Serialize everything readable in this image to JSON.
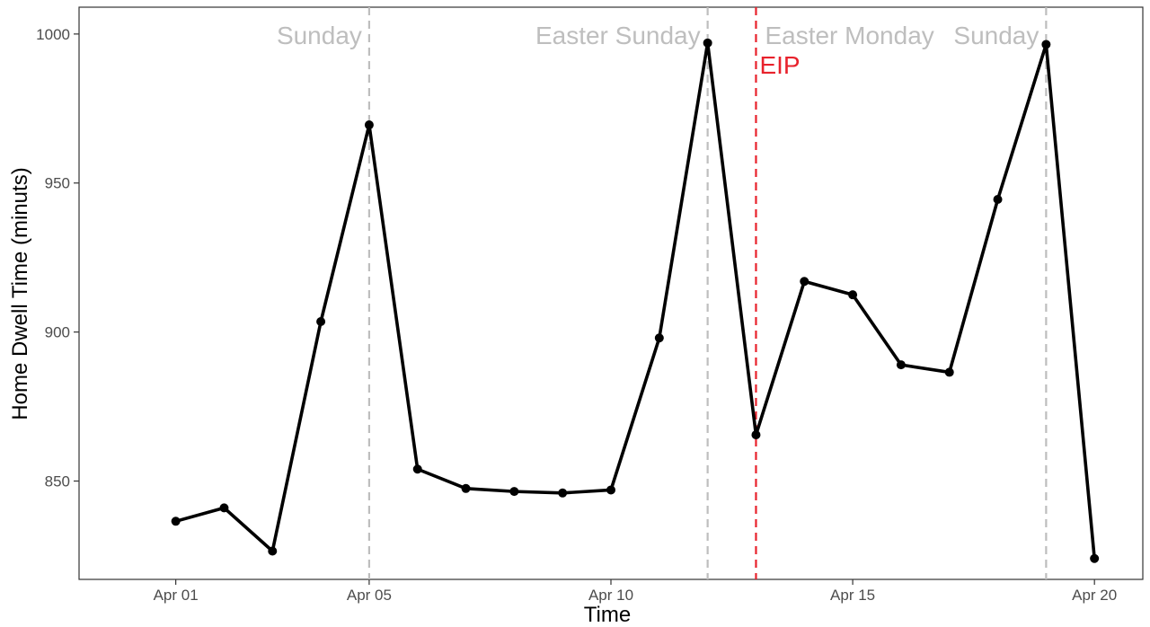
{
  "chart_data": {
    "type": "line",
    "xlabel": "Time",
    "ylabel": "Home Dwell Time (minuts)",
    "x": [
      "2020-04-01",
      "2020-04-02",
      "2020-04-03",
      "2020-04-04",
      "2020-04-05",
      "2020-04-06",
      "2020-04-07",
      "2020-04-08",
      "2020-04-09",
      "2020-04-10",
      "2020-04-11",
      "2020-04-12",
      "2020-04-13",
      "2020-04-14",
      "2020-04-15",
      "2020-04-16",
      "2020-04-17",
      "2020-04-18",
      "2020-04-19",
      "2020-04-20"
    ],
    "series": [
      {
        "values": [
          836.5,
          841,
          826.5,
          903.5,
          969.5,
          854,
          847.5,
          846.5,
          846,
          847,
          898,
          997,
          865.5,
          917,
          912.5,
          889,
          886.5,
          944.5,
          996.5,
          824
        ]
      }
    ],
    "xlim": [
      "2020-03-30",
      "2020-04-21"
    ],
    "ylim": [
      817,
      1009
    ],
    "y_ticks": [
      850,
      900,
      950,
      1000
    ],
    "x_ticks": [
      {
        "date": "2020-04-01",
        "label": "Apr 01"
      },
      {
        "date": "2020-04-05",
        "label": "Apr 05"
      },
      {
        "date": "2020-04-10",
        "label": "Apr 10"
      },
      {
        "date": "2020-04-15",
        "label": "Apr 15"
      },
      {
        "date": "2020-04-20",
        "label": "Apr 20"
      }
    ],
    "vertical_lines": [
      {
        "date": "2020-04-05",
        "color": "#bebebe",
        "label": "Sunday",
        "label_side": "left"
      },
      {
        "date": "2020-04-12",
        "color": "#bebebe",
        "label": "Easter Sunday",
        "label_side": "left"
      },
      {
        "date": "2020-04-13",
        "color": "#e8222c",
        "label": "Easter Monday",
        "label_side": "right",
        "label_color": "#bebebe",
        "sub_label": "EIP",
        "sub_label_color": "#e8222c"
      },
      {
        "date": "2020-04-19",
        "color": "#bebebe",
        "label": "Sunday",
        "label_side": "left"
      }
    ],
    "line_color": "#000000",
    "grid": false,
    "legend": "none"
  }
}
